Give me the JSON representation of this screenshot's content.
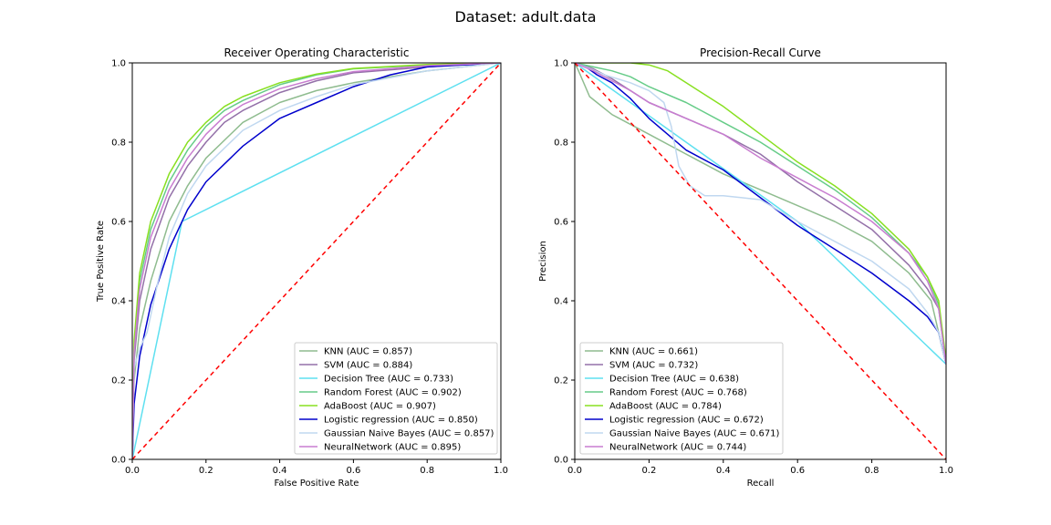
{
  "suptitle": "Dataset: adult.data",
  "chart_data": [
    {
      "type": "line",
      "title": "Receiver Operating Characteristic",
      "xlabel": "False Positive Rate",
      "ylabel": "True Positive Rate",
      "xlim": [
        0,
        1
      ],
      "ylim": [
        0,
        1
      ],
      "xticks": [
        "0.0",
        "0.2",
        "0.4",
        "0.6",
        "0.8",
        "1.0"
      ],
      "yticks": [
        "0.0",
        "0.2",
        "0.4",
        "0.6",
        "0.8",
        "1.0"
      ],
      "legend_position": "lower-right",
      "baseline": {
        "color": "#ff0000",
        "style": "dashed",
        "points": [
          [
            0,
            0
          ],
          [
            1,
            1
          ]
        ]
      },
      "series": [
        {
          "name": "KNN (AUC = 0.857)",
          "color": "#8fbc8f",
          "points": [
            [
              0,
              0
            ],
            [
              0.005,
              0.2
            ],
            [
              0.02,
              0.33
            ],
            [
              0.05,
              0.45
            ],
            [
              0.1,
              0.6
            ],
            [
              0.15,
              0.69
            ],
            [
              0.2,
              0.76
            ],
            [
              0.3,
              0.85
            ],
            [
              0.4,
              0.9
            ],
            [
              0.5,
              0.93
            ],
            [
              0.6,
              0.95
            ],
            [
              0.8,
              0.98
            ],
            [
              1,
              1
            ]
          ]
        },
        {
          "name": "SVM (AUC = 0.884)",
          "color": "#9370a8",
          "points": [
            [
              0,
              0
            ],
            [
              0.005,
              0.25
            ],
            [
              0.02,
              0.4
            ],
            [
              0.05,
              0.53
            ],
            [
              0.1,
              0.66
            ],
            [
              0.15,
              0.74
            ],
            [
              0.2,
              0.8
            ],
            [
              0.25,
              0.85
            ],
            [
              0.3,
              0.88
            ],
            [
              0.4,
              0.925
            ],
            [
              0.5,
              0.955
            ],
            [
              0.6,
              0.975
            ],
            [
              0.8,
              0.99
            ],
            [
              1,
              1
            ]
          ]
        },
        {
          "name": "Decision Tree (AUC = 0.733)",
          "color": "#5ee0f0",
          "points": [
            [
              0,
              0
            ],
            [
              0.135,
              0.6
            ],
            [
              1,
              1
            ]
          ]
        },
        {
          "name": "Random Forest (AUC = 0.902)",
          "color": "#66cc88",
          "points": [
            [
              0,
              0
            ],
            [
              0.005,
              0.28
            ],
            [
              0.02,
              0.45
            ],
            [
              0.05,
              0.58
            ],
            [
              0.1,
              0.7
            ],
            [
              0.15,
              0.78
            ],
            [
              0.2,
              0.84
            ],
            [
              0.25,
              0.88
            ],
            [
              0.3,
              0.905
            ],
            [
              0.4,
              0.945
            ],
            [
              0.5,
              0.97
            ],
            [
              0.6,
              0.985
            ],
            [
              0.8,
              0.995
            ],
            [
              1,
              1
            ]
          ]
        },
        {
          "name": "AdaBoost (AUC = 0.907)",
          "color": "#88e020",
          "points": [
            [
              0,
              0
            ],
            [
              0.005,
              0.3
            ],
            [
              0.02,
              0.47
            ],
            [
              0.05,
              0.6
            ],
            [
              0.1,
              0.72
            ],
            [
              0.15,
              0.8
            ],
            [
              0.2,
              0.85
            ],
            [
              0.25,
              0.89
            ],
            [
              0.3,
              0.915
            ],
            [
              0.4,
              0.95
            ],
            [
              0.5,
              0.972
            ],
            [
              0.6,
              0.986
            ],
            [
              0.8,
              0.996
            ],
            [
              1,
              1
            ]
          ]
        },
        {
          "name": "Logistic regression (AUC = 0.850)",
          "color": "#0000cc",
          "points": [
            [
              0,
              0
            ],
            [
              0.005,
              0.14
            ],
            [
              0.02,
              0.26
            ],
            [
              0.05,
              0.39
            ],
            [
              0.1,
              0.53
            ],
            [
              0.15,
              0.63
            ],
            [
              0.2,
              0.7
            ],
            [
              0.3,
              0.79
            ],
            [
              0.4,
              0.86
            ],
            [
              0.5,
              0.9
            ],
            [
              0.6,
              0.94
            ],
            [
              0.7,
              0.97
            ],
            [
              0.8,
              0.99
            ],
            [
              1,
              1
            ]
          ]
        },
        {
          "name": "Gaussian Naive Bayes (AUC = 0.857)",
          "color": "#c0d8f0",
          "points": [
            [
              0,
              0
            ],
            [
              0.005,
              0.23
            ],
            [
              0.02,
              0.28
            ],
            [
              0.04,
              0.32
            ],
            [
              0.07,
              0.45
            ],
            [
              0.1,
              0.56
            ],
            [
              0.15,
              0.67
            ],
            [
              0.2,
              0.74
            ],
            [
              0.3,
              0.83
            ],
            [
              0.4,
              0.88
            ],
            [
              0.5,
              0.915
            ],
            [
              0.6,
              0.945
            ],
            [
              0.8,
              0.98
            ],
            [
              1,
              1
            ]
          ]
        },
        {
          "name": "NeuralNetwork (AUC = 0.895)",
          "color": "#c87dd0",
          "points": [
            [
              0,
              0
            ],
            [
              0.005,
              0.27
            ],
            [
              0.02,
              0.43
            ],
            [
              0.05,
              0.56
            ],
            [
              0.1,
              0.68
            ],
            [
              0.15,
              0.76
            ],
            [
              0.2,
              0.82
            ],
            [
              0.25,
              0.865
            ],
            [
              0.3,
              0.895
            ],
            [
              0.4,
              0.935
            ],
            [
              0.5,
              0.96
            ],
            [
              0.6,
              0.978
            ],
            [
              0.8,
              0.993
            ],
            [
              1,
              1
            ]
          ]
        }
      ]
    },
    {
      "type": "line",
      "title": "Precision-Recall Curve",
      "xlabel": "Recall",
      "ylabel": "Precision",
      "xlim": [
        0,
        1
      ],
      "ylim": [
        0,
        1
      ],
      "xticks": [
        "0.0",
        "0.2",
        "0.4",
        "0.6",
        "0.8",
        "1.0"
      ],
      "yticks": [
        "0.0",
        "0.2",
        "0.4",
        "0.6",
        "0.8",
        "1.0"
      ],
      "legend_position": "lower-left",
      "baseline": {
        "color": "#ff0000",
        "style": "dashed",
        "points": [
          [
            0,
            1
          ],
          [
            1,
            0
          ]
        ]
      },
      "series": [
        {
          "name": "KNN (AUC = 0.661)",
          "color": "#8fbc8f",
          "points": [
            [
              0,
              1
            ],
            [
              0.01,
              0.98
            ],
            [
              0.04,
              0.915
            ],
            [
              0.1,
              0.87
            ],
            [
              0.2,
              0.82
            ],
            [
              0.3,
              0.77
            ],
            [
              0.4,
              0.72
            ],
            [
              0.5,
              0.68
            ],
            [
              0.6,
              0.64
            ],
            [
              0.7,
              0.6
            ],
            [
              0.8,
              0.55
            ],
            [
              0.9,
              0.47
            ],
            [
              0.96,
              0.4
            ],
            [
              1,
              0.24
            ]
          ]
        },
        {
          "name": "SVM (AUC = 0.732)",
          "color": "#9370a8",
          "points": [
            [
              0,
              1
            ],
            [
              0.05,
              0.985
            ],
            [
              0.1,
              0.96
            ],
            [
              0.15,
              0.93
            ],
            [
              0.2,
              0.9
            ],
            [
              0.3,
              0.86
            ],
            [
              0.4,
              0.82
            ],
            [
              0.5,
              0.77
            ],
            [
              0.6,
              0.7
            ],
            [
              0.7,
              0.64
            ],
            [
              0.8,
              0.58
            ],
            [
              0.9,
              0.49
            ],
            [
              0.95,
              0.43
            ],
            [
              0.98,
              0.38
            ],
            [
              1,
              0.24
            ]
          ]
        },
        {
          "name": "Decision Tree (AUC = 0.638)",
          "color": "#5ee0f0",
          "points": [
            [
              0,
              1
            ],
            [
              0.6,
              0.6
            ],
            [
              1,
              0.24
            ]
          ]
        },
        {
          "name": "Random Forest (AUC = 0.768)",
          "color": "#66cc88",
          "points": [
            [
              0,
              1
            ],
            [
              0.05,
              0.99
            ],
            [
              0.1,
              0.98
            ],
            [
              0.15,
              0.965
            ],
            [
              0.2,
              0.94
            ],
            [
              0.3,
              0.9
            ],
            [
              0.4,
              0.85
            ],
            [
              0.5,
              0.8
            ],
            [
              0.6,
              0.74
            ],
            [
              0.7,
              0.68
            ],
            [
              0.8,
              0.61
            ],
            [
              0.9,
              0.52
            ],
            [
              0.95,
              0.46
            ],
            [
              0.98,
              0.39
            ],
            [
              1,
              0.24
            ]
          ]
        },
        {
          "name": "AdaBoost (AUC = 0.784)",
          "color": "#88e020",
          "points": [
            [
              0,
              1
            ],
            [
              0.05,
              1
            ],
            [
              0.1,
              1
            ],
            [
              0.15,
              1
            ],
            [
              0.2,
              0.995
            ],
            [
              0.25,
              0.98
            ],
            [
              0.3,
              0.95
            ],
            [
              0.4,
              0.89
            ],
            [
              0.5,
              0.82
            ],
            [
              0.6,
              0.75
            ],
            [
              0.7,
              0.69
            ],
            [
              0.8,
              0.62
            ],
            [
              0.9,
              0.53
            ],
            [
              0.95,
              0.46
            ],
            [
              0.98,
              0.4
            ],
            [
              1,
              0.25
            ]
          ]
        },
        {
          "name": "Logistic regression (AUC = 0.672)",
          "color": "#0000cc",
          "points": [
            [
              0,
              1
            ],
            [
              0.03,
              0.99
            ],
            [
              0.06,
              0.97
            ],
            [
              0.1,
              0.95
            ],
            [
              0.15,
              0.91
            ],
            [
              0.2,
              0.86
            ],
            [
              0.25,
              0.82
            ],
            [
              0.3,
              0.78
            ],
            [
              0.4,
              0.73
            ],
            [
              0.5,
              0.66
            ],
            [
              0.6,
              0.59
            ],
            [
              0.7,
              0.53
            ],
            [
              0.8,
              0.47
            ],
            [
              0.9,
              0.4
            ],
            [
              0.95,
              0.36
            ],
            [
              0.98,
              0.32
            ],
            [
              1,
              0.24
            ]
          ]
        },
        {
          "name": "Gaussian Naive Bayes (AUC = 0.671)",
          "color": "#c0d8f0",
          "points": [
            [
              0,
              1
            ],
            [
              0.03,
              0.99
            ],
            [
              0.08,
              0.97
            ],
            [
              0.15,
              0.95
            ],
            [
              0.2,
              0.93
            ],
            [
              0.24,
              0.9
            ],
            [
              0.26,
              0.84
            ],
            [
              0.28,
              0.74
            ],
            [
              0.31,
              0.69
            ],
            [
              0.35,
              0.665
            ],
            [
              0.4,
              0.665
            ],
            [
              0.45,
              0.66
            ],
            [
              0.5,
              0.655
            ],
            [
              0.6,
              0.6
            ],
            [
              0.7,
              0.55
            ],
            [
              0.8,
              0.5
            ],
            [
              0.9,
              0.43
            ],
            [
              0.95,
              0.37
            ],
            [
              0.98,
              0.32
            ],
            [
              1,
              0.24
            ]
          ]
        },
        {
          "name": "NeuralNetwork (AUC = 0.744)",
          "color": "#c87dd0",
          "points": [
            [
              0,
              1
            ],
            [
              0.05,
              0.98
            ],
            [
              0.1,
              0.955
            ],
            [
              0.15,
              0.93
            ],
            [
              0.2,
              0.9
            ],
            [
              0.3,
              0.86
            ],
            [
              0.4,
              0.82
            ],
            [
              0.5,
              0.76
            ],
            [
              0.6,
              0.71
            ],
            [
              0.7,
              0.66
            ],
            [
              0.8,
              0.6
            ],
            [
              0.9,
              0.52
            ],
            [
              0.95,
              0.45
            ],
            [
              0.98,
              0.38
            ],
            [
              1,
              0.24
            ]
          ]
        }
      ]
    }
  ]
}
